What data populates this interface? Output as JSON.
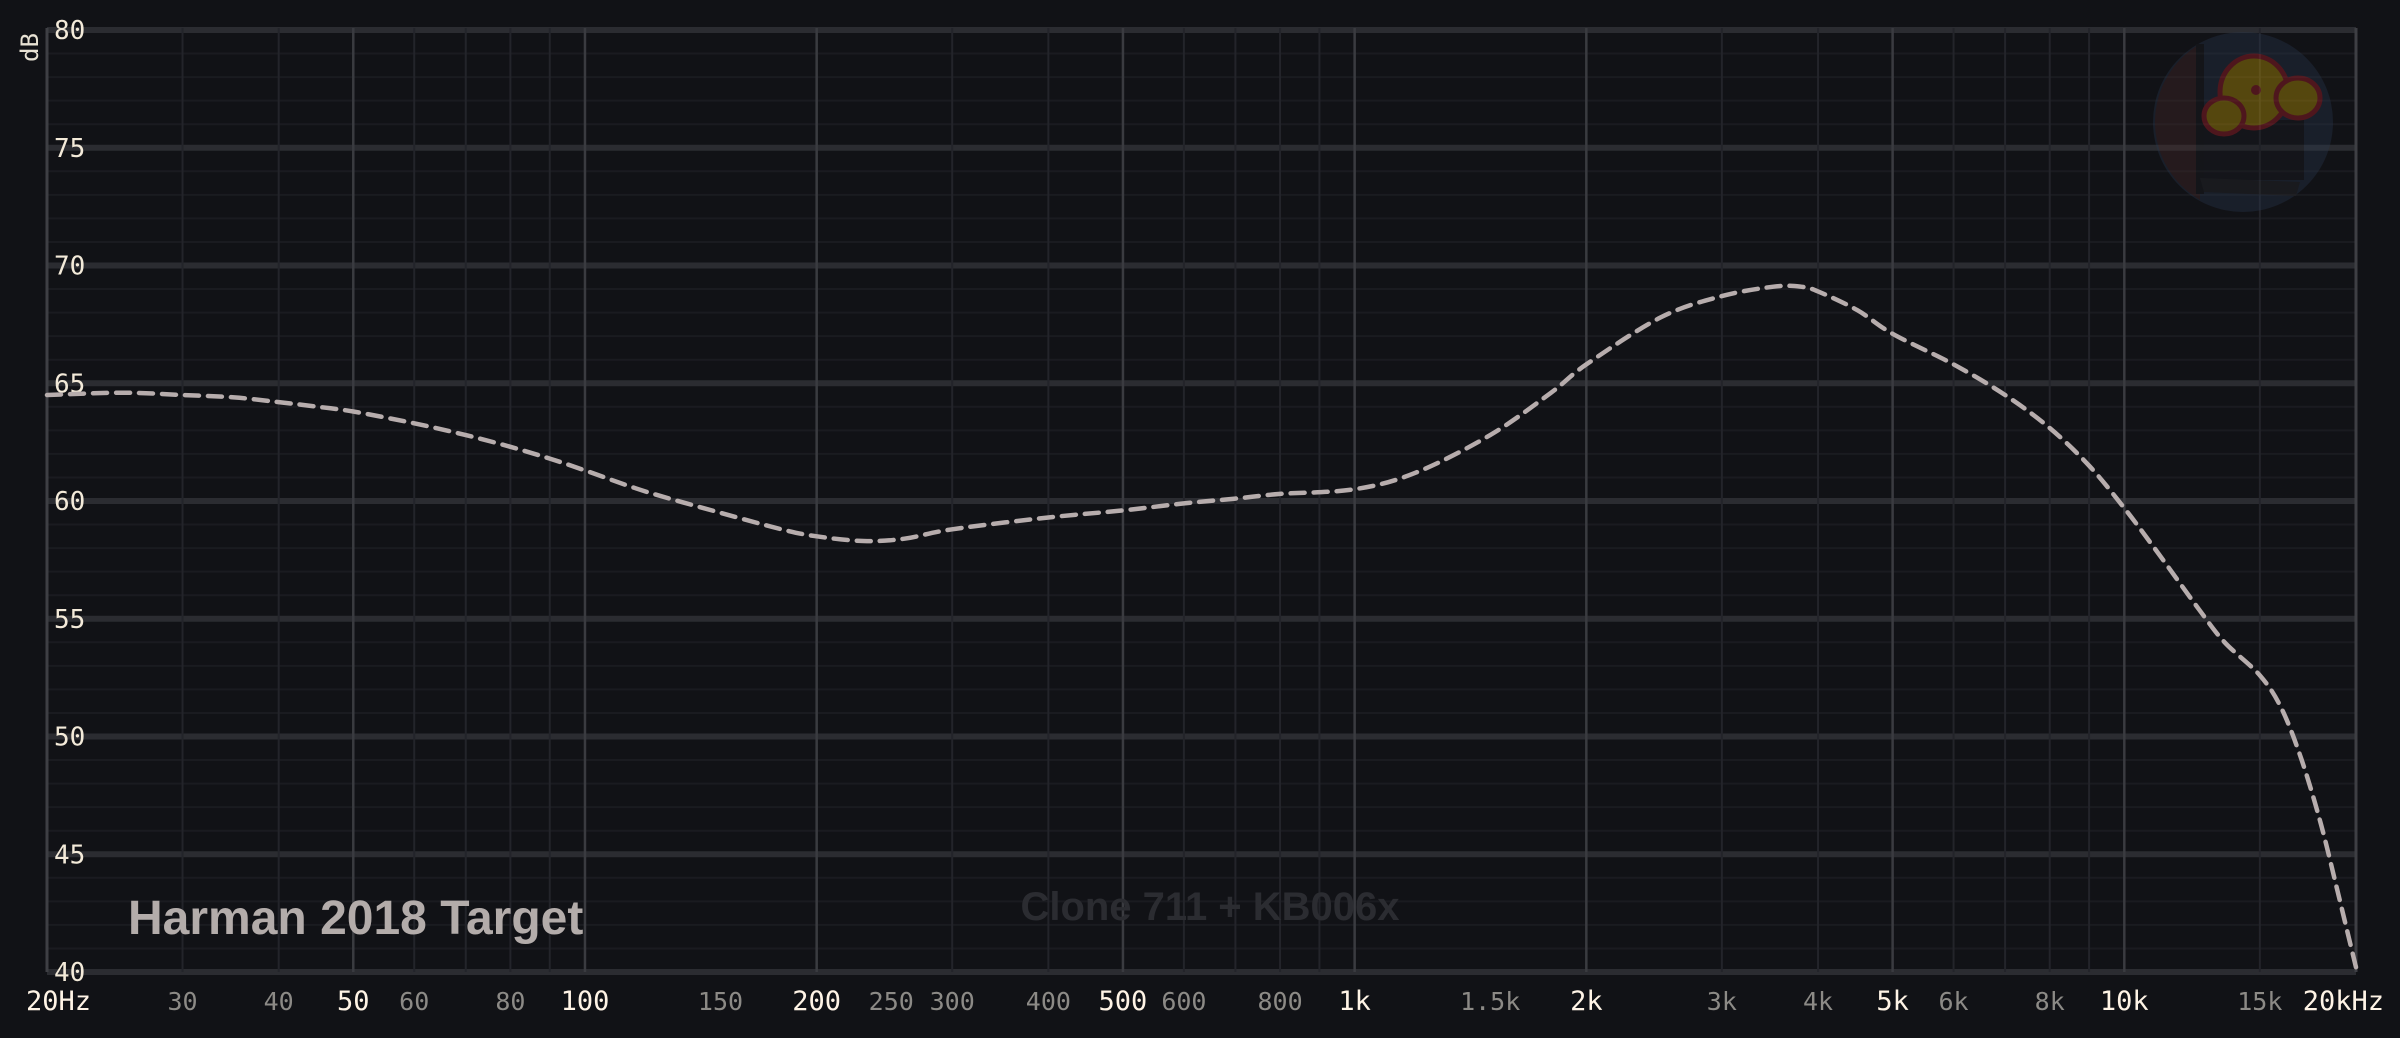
{
  "chart_data": {
    "type": "line",
    "xscale": "log",
    "xlim": [
      20,
      20000
    ],
    "ylim": [
      40,
      80
    ],
    "ylabel": "dB",
    "xlabel": "",
    "grid": true,
    "yticks": [
      40,
      45,
      50,
      55,
      60,
      65,
      70,
      75,
      80
    ],
    "xticks_major": [
      {
        "value": 20,
        "label": "20Hz"
      },
      {
        "value": 50,
        "label": "50"
      },
      {
        "value": 100,
        "label": "100"
      },
      {
        "value": 200,
        "label": "200"
      },
      {
        "value": 500,
        "label": "500"
      },
      {
        "value": 1000,
        "label": "1k"
      },
      {
        "value": 2000,
        "label": "2k"
      },
      {
        "value": 5000,
        "label": "5k"
      },
      {
        "value": 10000,
        "label": "10k"
      },
      {
        "value": 20000,
        "label": "20kHz"
      }
    ],
    "xticks_minor": [
      {
        "value": 30,
        "label": "30"
      },
      {
        "value": 40,
        "label": "40"
      },
      {
        "value": 60,
        "label": "60"
      },
      {
        "value": 80,
        "label": "80"
      },
      {
        "value": 150,
        "label": "150"
      },
      {
        "value": 250,
        "label": "250"
      },
      {
        "value": 300,
        "label": "300"
      },
      {
        "value": 400,
        "label": "400"
      },
      {
        "value": 600,
        "label": "600"
      },
      {
        "value": 800,
        "label": "800"
      },
      {
        "value": 1500,
        "label": "1.5k"
      },
      {
        "value": 3000,
        "label": "3k"
      },
      {
        "value": 4000,
        "label": "4k"
      },
      {
        "value": 6000,
        "label": "6k"
      },
      {
        "value": 8000,
        "label": "8k"
      },
      {
        "value": 15000,
        "label": "15k"
      }
    ],
    "series": [
      {
        "name": "Harman 2018 Target",
        "color": "#b7adad",
        "dash": "dashed",
        "points": [
          [
            20,
            64.5
          ],
          [
            25,
            64.6
          ],
          [
            30,
            64.5
          ],
          [
            35,
            64.4
          ],
          [
            40,
            64.2
          ],
          [
            45,
            64.0
          ],
          [
            50,
            63.8
          ],
          [
            60,
            63.3
          ],
          [
            70,
            62.8
          ],
          [
            80,
            62.3
          ],
          [
            90,
            61.8
          ],
          [
            100,
            61.3
          ],
          [
            120,
            60.4
          ],
          [
            150,
            59.5
          ],
          [
            180,
            58.8
          ],
          [
            200,
            58.5
          ],
          [
            230,
            58.3
          ],
          [
            260,
            58.4
          ],
          [
            300,
            58.8
          ],
          [
            400,
            59.3
          ],
          [
            500,
            59.6
          ],
          [
            600,
            59.9
          ],
          [
            700,
            60.1
          ],
          [
            800,
            60.3
          ],
          [
            1000,
            60.5
          ],
          [
            1200,
            61.2
          ],
          [
            1500,
            62.8
          ],
          [
            1800,
            64.6
          ],
          [
            2000,
            65.8
          ],
          [
            2500,
            67.8
          ],
          [
            3000,
            68.7
          ],
          [
            3500,
            69.1
          ],
          [
            3800,
            69.1
          ],
          [
            4000,
            68.9
          ],
          [
            4500,
            68.1
          ],
          [
            5000,
            67.1
          ],
          [
            6000,
            65.8
          ],
          [
            7000,
            64.5
          ],
          [
            8000,
            63.1
          ],
          [
            9000,
            61.5
          ],
          [
            10000,
            59.7
          ],
          [
            11000,
            57.9
          ],
          [
            12500,
            55.4
          ],
          [
            13500,
            54.0
          ],
          [
            15000,
            52.6
          ],
          [
            16000,
            51.2
          ],
          [
            17000,
            49.0
          ],
          [
            18000,
            46.3
          ],
          [
            19000,
            43.2
          ],
          [
            20000,
            40.2
          ]
        ]
      }
    ],
    "legend": {
      "position": "bottom-left",
      "label": "Harman 2018 Target"
    },
    "watermark": "Clone 711 + KB006x"
  },
  "logo": {
    "name": "mascot-logo"
  }
}
